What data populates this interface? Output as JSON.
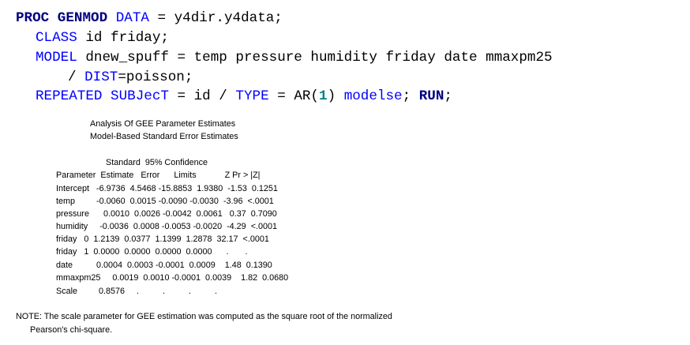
{
  "code": {
    "line1": {
      "proc": "PROC GENMOD",
      "data_kw": "DATA",
      "rest": " = y4dir.y4data;"
    },
    "line2": {
      "class_kw": "CLASS",
      "rest": " id friday;"
    },
    "line3": {
      "model_kw": "MODEL",
      "rest": " dnew_spuff = temp pressure humidity friday date mmaxpm25"
    },
    "line4": {
      "slash": "/ ",
      "dist_kw": "DIST",
      "rest": "=poisson;"
    },
    "line5": {
      "repeated_kw": "REPEATED",
      "subject_kw": "SUBJecT",
      "eq": " = id / ",
      "type_kw": "TYPE",
      "eq2": " = AR(",
      "num": "1",
      "close": ") ",
      "modelse_kw": "modelse",
      "semi": "; ",
      "run_kw": "RUN",
      "semi2": ";"
    }
  },
  "output": {
    "title1": "Analysis Of GEE Parameter Estimates",
    "title2": "Model-Based Standard Error Estimates",
    "header1": "Standard  95% Confidence",
    "header2": "Parameter  Estimate   Error      Limits            Z Pr > |Z|",
    "rows": [
      "Intercept   -6.9736  4.5468 -15.8853  1.9380  -1.53  0.1251",
      "temp         -0.0060  0.0015 -0.0090 -0.0030  -3.96  <.0001",
      "pressure      0.0010  0.0026 -0.0042  0.0061   0.37  0.7090",
      "humidity     -0.0036  0.0008 -0.0053 -0.0020  -4.29  <.0001",
      "friday   0  1.2139  0.0377  1.1399  1.2878  32.17  <.0001",
      "friday   1  0.0000  0.0000  0.0000  0.0000      .       .",
      "date          0.0004  0.0003 -0.0001  0.0009    1.48  0.1390",
      "mmaxpm25     0.0019  0.0010 -0.0001  0.0039    1.82  0.0680",
      "Scale         0.8576     .          .          .          ."
    ]
  },
  "note": {
    "line1": "NOTE: The scale parameter for GEE estimation was computed as the square root of the normalized",
    "line2": "Pearson's chi-square."
  }
}
